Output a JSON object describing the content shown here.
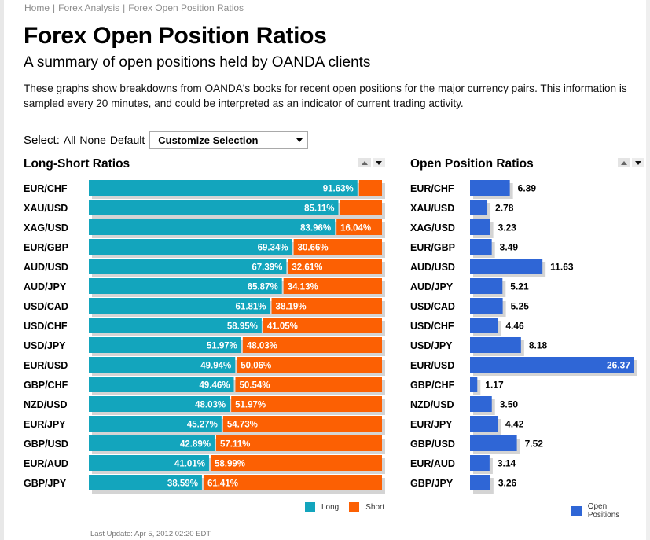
{
  "breadcrumb": [
    "Home",
    "Forex Analysis",
    "Forex Open Position Ratios"
  ],
  "page": {
    "title": "Forex Open Position Ratios",
    "subtitle": "A summary of open positions held by OANDA clients",
    "intro": "These graphs show breakdowns from OANDA's books for recent open positions for the major currency pairs. This information is sampled every 20 minutes, and could be interpreted as an indicator of current trading activity."
  },
  "select": {
    "label": "Select:",
    "all": "All",
    "none": "None",
    "default": "Default",
    "customize": "Customize Selection"
  },
  "colors": {
    "long": "#13a5bd",
    "short": "#fc6003",
    "open": "#2f66d6",
    "shadow": "#d4d4d4"
  },
  "chart_data": [
    {
      "type": "bar",
      "title": "Long-Short Ratios",
      "orientation": "horizontal",
      "stacked": true,
      "categories": [
        "EUR/CHF",
        "XAU/USD",
        "XAG/USD",
        "EUR/GBP",
        "AUD/USD",
        "AUD/JPY",
        "USD/CAD",
        "USD/CHF",
        "USD/JPY",
        "EUR/USD",
        "GBP/CHF",
        "NZD/USD",
        "EUR/JPY",
        "GBP/USD",
        "EUR/AUD",
        "GBP/JPY"
      ],
      "series": [
        {
          "name": "Long",
          "values": [
            91.63,
            85.11,
            83.96,
            69.34,
            67.39,
            65.87,
            61.81,
            58.95,
            51.97,
            49.94,
            49.46,
            48.03,
            45.27,
            42.89,
            41.01,
            38.59
          ]
        },
        {
          "name": "Short",
          "values": [
            8.37,
            14.89,
            16.04,
            30.66,
            32.61,
            34.13,
            38.19,
            41.05,
            48.03,
            50.06,
            50.54,
            51.97,
            54.73,
            57.11,
            58.99,
            61.41
          ]
        }
      ],
      "long_labels": [
        "91.63%",
        "85.11%",
        "83.96%",
        "69.34%",
        "67.39%",
        "65.87%",
        "61.81%",
        "58.95%",
        "51.97%",
        "49.94%",
        "49.46%",
        "48.03%",
        "45.27%",
        "42.89%",
        "41.01%",
        "38.59%"
      ],
      "short_labels": [
        "",
        "",
        "16.04%",
        "30.66%",
        "32.61%",
        "34.13%",
        "38.19%",
        "41.05%",
        "48.03%",
        "50.06%",
        "50.54%",
        "51.97%",
        "54.73%",
        "57.11%",
        "58.99%",
        "61.41%"
      ],
      "xlim": [
        0,
        100
      ],
      "legend": [
        "Long",
        "Short"
      ],
      "legend_placement": "bottom-right"
    },
    {
      "type": "bar",
      "title": "Open Position Ratios",
      "orientation": "horizontal",
      "categories": [
        "EUR/CHF",
        "XAU/USD",
        "XAG/USD",
        "EUR/GBP",
        "AUD/USD",
        "AUD/JPY",
        "USD/CAD",
        "USD/CHF",
        "USD/JPY",
        "EUR/USD",
        "GBP/CHF",
        "NZD/USD",
        "EUR/JPY",
        "GBP/USD",
        "EUR/AUD",
        "GBP/JPY"
      ],
      "series": [
        {
          "name": "Open Positions",
          "values": [
            6.39,
            2.78,
            3.23,
            3.49,
            11.63,
            5.21,
            5.25,
            4.46,
            8.18,
            26.37,
            1.17,
            3.5,
            4.42,
            7.52,
            3.14,
            3.26
          ]
        }
      ],
      "value_labels": [
        "6.39",
        "2.78",
        "3.23",
        "3.49",
        "11.63",
        "5.21",
        "5.25",
        "4.46",
        "8.18",
        "26.37",
        "1.17",
        "3.50",
        "4.42",
        "7.52",
        "3.14",
        "3.26"
      ],
      "xlim": [
        0,
        26.37
      ],
      "legend": [
        "Open Positions"
      ],
      "legend_placement": "bottom-right"
    }
  ],
  "last_update": "Last Update: Apr 5, 2012 02:20 EDT"
}
